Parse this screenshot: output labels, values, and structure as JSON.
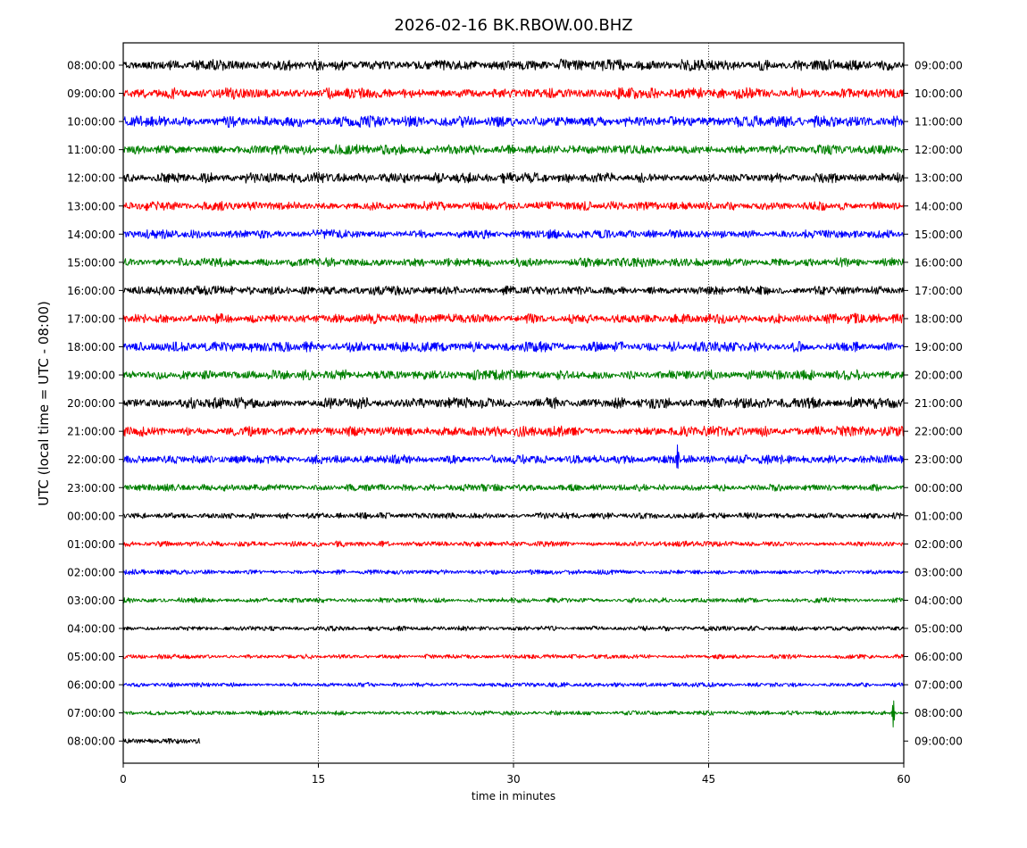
{
  "chart_data": {
    "type": "line",
    "title": "2026-02-16 BK.RBOW.00.BHZ",
    "xlabel": "time in minutes",
    "ylabel": "UTC (local time = UTC - 08:00)",
    "xlim": [
      0,
      60
    ],
    "x_ticks": [
      "0",
      "15",
      "30",
      "45",
      "60"
    ],
    "x_tick_values": [
      0,
      15,
      30,
      45,
      60
    ],
    "grid_vertical": true,
    "trace_colors": [
      "#000000",
      "#ff0000",
      "#0000ff",
      "#008000"
    ],
    "left_labels": [
      "08:00:00",
      "09:00:00",
      "10:00:00",
      "11:00:00",
      "12:00:00",
      "13:00:00",
      "14:00:00",
      "15:00:00",
      "16:00:00",
      "17:00:00",
      "18:00:00",
      "19:00:00",
      "20:00:00",
      "21:00:00",
      "22:00:00",
      "23:00:00",
      "00:00:00",
      "01:00:00",
      "02:00:00",
      "03:00:00",
      "04:00:00",
      "05:00:00",
      "06:00:00",
      "07:00:00",
      "08:00:00"
    ],
    "right_labels": [
      "09:00:00",
      "10:00:00",
      "11:00:00",
      "12:00:00",
      "13:00:00",
      "14:00:00",
      "15:00:00",
      "16:00:00",
      "17:00:00",
      "18:00:00",
      "19:00:00",
      "20:00:00",
      "21:00:00",
      "22:00:00",
      "23:00:00",
      "00:00:00",
      "01:00:00",
      "02:00:00",
      "03:00:00",
      "04:00:00",
      "05:00:00",
      "06:00:00",
      "07:00:00",
      "08:00:00",
      "09:00:00"
    ],
    "trace_end_minutes": [
      60,
      60,
      60,
      60,
      60,
      60,
      60,
      60,
      60,
      60,
      60,
      60,
      60,
      60,
      60,
      60,
      60,
      60,
      60,
      60,
      60,
      60,
      60,
      60,
      5.9
    ],
    "trace_amplitude": [
      1.0,
      1.0,
      1.0,
      0.9,
      0.9,
      0.8,
      0.8,
      0.8,
      0.8,
      0.9,
      0.9,
      0.9,
      1.0,
      0.9,
      0.8,
      0.6,
      0.55,
      0.5,
      0.45,
      0.45,
      0.45,
      0.4,
      0.4,
      0.4,
      0.5
    ],
    "spikes": [
      {
        "row": 14,
        "minute": 42.6,
        "amplitude": 2.8
      },
      {
        "row": 23,
        "minute": 59.2,
        "amplitude": 3.6
      }
    ]
  }
}
